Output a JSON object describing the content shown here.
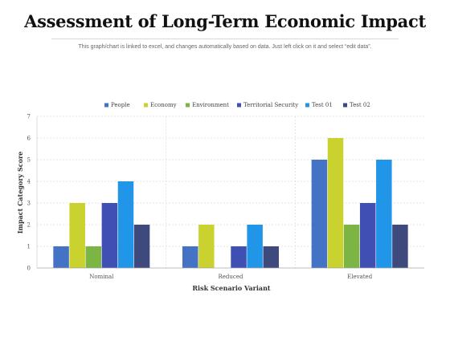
{
  "title": "Assessment of Long-Term Economic Impact",
  "subtitle": "This graph/chart is linked to excel, and changes automatically based on data. Just left click on it and select “edit data”.",
  "chart_data": {
    "type": "bar",
    "categories": [
      "Nominal",
      "Reduced",
      "Elevated"
    ],
    "series": [
      {
        "name": "People",
        "color": "#4472C4",
        "values": [
          1,
          1,
          5
        ]
      },
      {
        "name": "Economy",
        "color": "#C9D22E",
        "values": [
          3,
          2,
          6
        ]
      },
      {
        "name": "Environment",
        "color": "#7DB544",
        "values": [
          1,
          0,
          2
        ]
      },
      {
        "name": "Territorial Security",
        "color": "#3F4FB3",
        "values": [
          3,
          1,
          3
        ]
      },
      {
        "name": "Test 01",
        "color": "#2196E8",
        "values": [
          4,
          2,
          5
        ]
      },
      {
        "name": "Test 02",
        "color": "#3E4A7E",
        "values": [
          2,
          1,
          2
        ]
      }
    ],
    "xlabel": "Risk Scenario Variant",
    "ylabel": "Impact Category Score",
    "ylim": [
      0,
      7
    ],
    "yticks": [
      0,
      1,
      2,
      3,
      4,
      5,
      6,
      7
    ],
    "grid": true,
    "legend_position": "top"
  }
}
